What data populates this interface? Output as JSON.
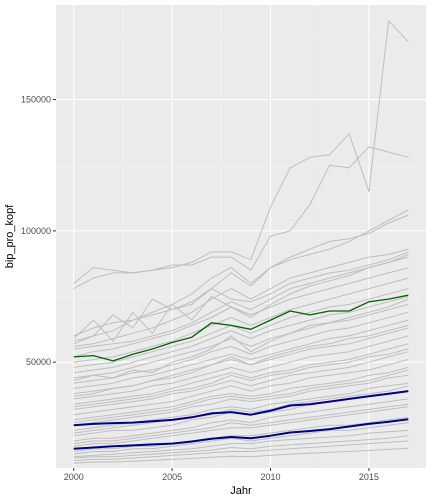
{
  "chart_data": {
    "type": "line",
    "title": "",
    "xlabel": "Jahr",
    "ylabel": "bip_pro_kopf",
    "xlim": [
      1999.1,
      2017.9
    ],
    "ylim": [
      9700,
      186000
    ],
    "x_ticks": [
      {
        "value": 2000,
        "label": "2000"
      },
      {
        "value": 2005,
        "label": "2005"
      },
      {
        "value": 2010,
        "label": "2010"
      },
      {
        "value": 2015,
        "label": "2015"
      }
    ],
    "y_ticks": [
      {
        "value": 50000,
        "label": "50000"
      },
      {
        "value": 100000,
        "label": "100000"
      },
      {
        "value": 150000,
        "label": "150000"
      }
    ],
    "grid": true,
    "legend": "none",
    "colors": {
      "panel_background": "#ebebeb",
      "grid_major": "#ffffff",
      "grid_minor": "#f2f2f2",
      "background_series": "#bebebe",
      "highlight_green": "#006400",
      "highlight_navy": "#00008b",
      "axis_text": "#4d4d4d"
    },
    "x": [
      2000,
      2001,
      2002,
      2003,
      2004,
      2005,
      2006,
      2007,
      2008,
      2009,
      2010,
      2011,
      2012,
      2013,
      2014,
      2015,
      2016,
      2017
    ],
    "background_series": [
      {
        "values": [
          80000,
          86000,
          85000,
          84000,
          85000,
          86000,
          88000,
          92000,
          92000,
          89000,
          109000,
          124000,
          128000,
          129000,
          137000,
          115000,
          180000,
          172000
        ]
      },
      {
        "values": [
          78000,
          82000,
          84000,
          84000,
          85000,
          87000,
          87000,
          90000,
          90000,
          85000,
          98000,
          100000,
          110000,
          125000,
          124000,
          132000,
          130000,
          128000
        ]
      },
      {
        "values": [
          60000,
          63000,
          65000,
          66000,
          68000,
          70000,
          73000,
          78000,
          84000,
          79000,
          86000,
          90000,
          93000,
          96000,
          97000,
          99000,
          103000,
          106000
        ]
      },
      {
        "values": [
          58000,
          60000,
          62000,
          66000,
          69000,
          72000,
          76000,
          82000,
          86000,
          80000,
          86000,
          89000,
          91000,
          93000,
          96000,
          100000,
          104000,
          108000
        ]
      },
      {
        "values": [
          56000,
          57000,
          59000,
          61000,
          63000,
          66000,
          69000,
          74000,
          78000,
          74000,
          78000,
          82000,
          84000,
          86000,
          88000,
          90000,
          91000,
          93000
        ]
      },
      {
        "values": [
          55000,
          56000,
          57000,
          58000,
          60000,
          62000,
          65000,
          69000,
          73000,
          70000,
          74000,
          78000,
          80000,
          82000,
          84000,
          86000,
          88000,
          90000
        ]
      },
      {
        "values": [
          52000,
          54000,
          55000,
          57000,
          59000,
          61000,
          64000,
          67000,
          71000,
          68000,
          71000,
          74000,
          76000,
          78000,
          80000,
          82000,
          84000,
          86000
        ]
      },
      {
        "values": [
          50000,
          51000,
          52000,
          54000,
          56000,
          58000,
          61000,
          64000,
          67000,
          64000,
          67000,
          70000,
          72000,
          74000,
          76000,
          78000,
          80000,
          82000
        ]
      },
      {
        "values": [
          48000,
          49000,
          50000,
          52000,
          54000,
          56000,
          58000,
          61000,
          64000,
          61000,
          64000,
          67000,
          69000,
          71000,
          72000,
          74000,
          76000,
          78000
        ]
      },
      {
        "values": [
          46000,
          47000,
          48000,
          50000,
          52000,
          54000,
          56000,
          59000,
          62000,
          59000,
          62000,
          64000,
          66000,
          68000,
          69000,
          71000,
          73000,
          75000
        ]
      },
      {
        "values": [
          44000,
          45000,
          46000,
          48000,
          50000,
          52000,
          54000,
          56000,
          59000,
          56000,
          59000,
          61000,
          63000,
          65000,
          66000,
          68000,
          70000,
          72000
        ]
      },
      {
        "values": [
          42000,
          43000,
          44000,
          46000,
          47000,
          49000,
          51000,
          54000,
          56000,
          53000,
          56000,
          58000,
          60000,
          62000,
          63000,
          65000,
          67000,
          69000
        ]
      },
      {
        "values": [
          40000,
          41000,
          42000,
          44000,
          45000,
          47000,
          49000,
          51000,
          53000,
          51000,
          53000,
          55000,
          57000,
          59000,
          60000,
          62000,
          64000,
          66000
        ]
      },
      {
        "values": [
          38000,
          39000,
          40000,
          41000,
          43000,
          45000,
          47000,
          49000,
          51000,
          49000,
          51000,
          53000,
          55000,
          56000,
          57000,
          59000,
          61000,
          63000
        ]
      },
      {
        "values": [
          36000,
          37000,
          38000,
          39000,
          41000,
          42000,
          44000,
          46000,
          48000,
          46000,
          48000,
          50000,
          52000,
          53000,
          54000,
          56000,
          58000,
          60000
        ]
      },
      {
        "values": [
          34000,
          35000,
          36000,
          37000,
          38000,
          40000,
          42000,
          44000,
          46000,
          44000,
          46000,
          47000,
          49000,
          50000,
          51000,
          53000,
          55000,
          57000
        ]
      },
      {
        "values": [
          32000,
          33000,
          34000,
          35000,
          36000,
          38000,
          39000,
          41000,
          43000,
          41000,
          43000,
          45000,
          46000,
          47000,
          48000,
          50000,
          52000,
          54000
        ]
      },
      {
        "values": [
          30000,
          31000,
          32000,
          33000,
          34000,
          35000,
          37000,
          39000,
          41000,
          39000,
          41000,
          42000,
          44000,
          45000,
          46000,
          47000,
          49000,
          51000
        ]
      },
      {
        "values": [
          28000,
          29000,
          30000,
          31000,
          32000,
          33000,
          35000,
          37000,
          38000,
          37000,
          38000,
          40000,
          41000,
          42000,
          43000,
          45000,
          46000,
          48000
        ]
      },
      {
        "values": [
          26000,
          27000,
          28000,
          29000,
          30000,
          31000,
          33000,
          34000,
          36000,
          35000,
          36000,
          37000,
          39000,
          40000,
          41000,
          42000,
          44000,
          45000
        ]
      },
      {
        "values": [
          24000,
          25000,
          26000,
          27000,
          28000,
          29000,
          30000,
          32000,
          33000,
          32000,
          34000,
          35000,
          36000,
          37000,
          38000,
          40000,
          41000,
          42000
        ]
      },
      {
        "values": [
          22000,
          23000,
          24000,
          24000,
          25000,
          26000,
          28000,
          29000,
          31000,
          30000,
          31000,
          32000,
          34000,
          35000,
          36000,
          37000,
          38000,
          39000
        ]
      },
      {
        "values": [
          20000,
          21000,
          21000,
          22000,
          23000,
          24000,
          25000,
          27000,
          28000,
          27000,
          29000,
          30000,
          31000,
          32000,
          33000,
          34000,
          35000,
          36000
        ]
      },
      {
        "values": [
          18000,
          19000,
          19000,
          20000,
          21000,
          22000,
          23000,
          24000,
          25000,
          25000,
          26000,
          27000,
          28000,
          29000,
          30000,
          31000,
          32000,
          33000
        ]
      },
      {
        "values": [
          16000,
          17000,
          17000,
          18000,
          18000,
          19000,
          20000,
          21000,
          22000,
          22000,
          23000,
          24000,
          25000,
          26000,
          26000,
          27000,
          28000,
          29000
        ]
      },
      {
        "values": [
          14000,
          14500,
          15000,
          15500,
          16000,
          16500,
          17000,
          18000,
          19000,
          19000,
          20000,
          20500,
          21000,
          21500,
          22000,
          23000,
          23500,
          24000
        ]
      },
      {
        "values": [
          12500,
          13000,
          13000,
          13500,
          14000,
          14500,
          15000,
          15500,
          16000,
          16000,
          16500,
          17000,
          17500,
          18000,
          18500,
          19000,
          19500,
          20000
        ]
      },
      {
        "values": [
          11500,
          12000,
          12000,
          12300,
          12600,
          13000,
          13300,
          13800,
          14200,
          14000,
          14500,
          15000,
          15300,
          15700,
          16000,
          16400,
          16800,
          17200
        ]
      },
      {
        "values": [
          59000,
          66000,
          58000,
          69000,
          61000,
          72000,
          66000,
          75000,
          71000,
          67000,
          72000,
          76000,
          79000,
          81000,
          83000,
          86000,
          88000,
          91000
        ]
      },
      {
        "values": [
          57000,
          60000,
          68000,
          63000,
          74000,
          70000,
          72000,
          78000,
          74000,
          73000,
          76000,
          80000,
          82000,
          84000,
          85000,
          87000,
          89000,
          92000
        ]
      },
      {
        "values": [
          43000,
          45000,
          44000,
          47000,
          46000,
          50000,
          52000,
          55000,
          60000,
          54000,
          58000,
          61000,
          64000,
          65000,
          67000,
          69000,
          71000,
          74000
        ]
      },
      {
        "values": [
          37000,
          38000,
          40000,
          41000,
          43000,
          44000,
          46000,
          49000,
          52000,
          49000,
          52000,
          54000,
          56000,
          57000,
          59000,
          60000,
          62000,
          64000
        ]
      },
      {
        "values": [
          33000,
          34000,
          35000,
          36000,
          37000,
          39000,
          40000,
          42000,
          45000,
          43000,
          45000,
          46000,
          48000,
          49000,
          50000,
          52000,
          53000,
          55000
        ]
      },
      {
        "values": [
          27000,
          28000,
          29000,
          30000,
          31000,
          32000,
          34000,
          36000,
          37000,
          36000,
          37000,
          38000,
          40000,
          41000,
          42000,
          43000,
          45000,
          47000
        ]
      },
      {
        "values": [
          23000,
          24000,
          25000,
          26000,
          27000,
          28000,
          29000,
          30000,
          32000,
          31000,
          32000,
          34000,
          35000,
          36000,
          37000,
          38000,
          39000,
          41000
        ]
      },
      {
        "values": [
          19000,
          20000,
          20000,
          21000,
          22000,
          23000,
          24000,
          25000,
          27000,
          26000,
          27000,
          28000,
          29000,
          30000,
          31000,
          32000,
          33000,
          34000
        ]
      },
      {
        "values": [
          15000,
          16000,
          16000,
          17000,
          17000,
          18000,
          19000,
          20000,
          21000,
          20000,
          21000,
          22000,
          23000,
          24000,
          24000,
          25000,
          26000,
          27000
        ]
      },
      {
        "values": [
          13500,
          14000,
          14000,
          14500,
          15000,
          15500,
          16000,
          16500,
          17500,
          17000,
          18000,
          18500,
          19000,
          19500,
          20000,
          20500,
          21000,
          22000
        ]
      }
    ],
    "series": [
      {
        "color": "#006400",
        "values": [
          52000,
          52500,
          50500,
          53000,
          55000,
          57500,
          59500,
          65000,
          64000,
          62500,
          66000,
          69500,
          68000,
          69500,
          69500,
          73000,
          74000,
          75500
        ]
      },
      {
        "color": "#00008b",
        "values": [
          26000,
          26500,
          26800,
          27000,
          27500,
          28000,
          29000,
          30500,
          31000,
          30000,
          31500,
          33500,
          34000,
          35000,
          36000,
          37000,
          38000,
          39000
        ]
      },
      {
        "color": "#00008b",
        "values": [
          17000,
          17500,
          18000,
          18300,
          18700,
          19000,
          19800,
          20800,
          21500,
          21000,
          22000,
          23200,
          23800,
          24500,
          25500,
          26500,
          27300,
          28300
        ]
      }
    ]
  }
}
